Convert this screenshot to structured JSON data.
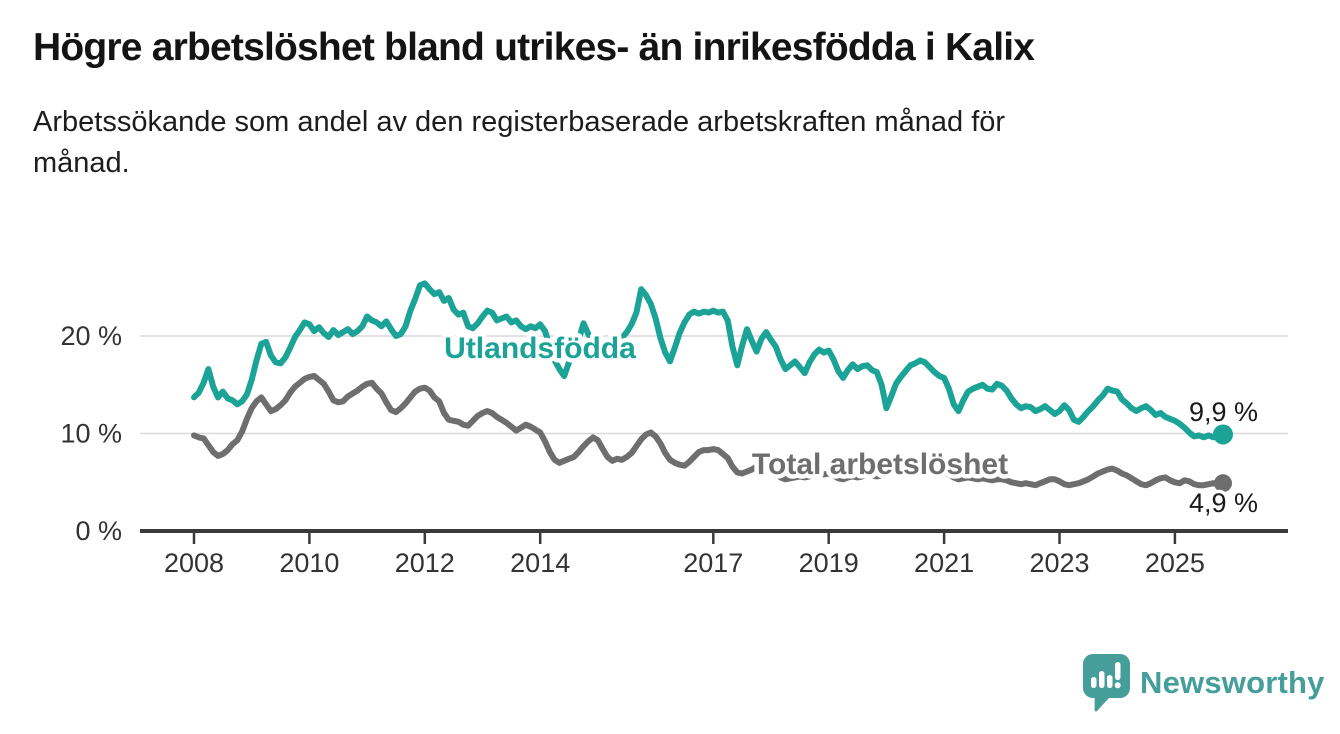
{
  "header": {
    "title": "Högre arbetslöshet bland utrikes- än inrikesfödda i Kalix",
    "subtitle": "Arbetssökande som andel av den registerbaserade arbetskraften månad för\nmånad."
  },
  "chart_data": {
    "type": "line",
    "unit": "%",
    "grid": "horizontal",
    "legend_position": "inline-labels",
    "x_axis": {
      "ticks": [
        2008,
        2010,
        2012,
        2014,
        2017,
        2019,
        2021,
        2023,
        2025
      ],
      "range": [
        2007.1,
        2026.6
      ]
    },
    "y_axis": {
      "ticks": [
        0,
        10,
        20
      ],
      "tick_suffix": " %",
      "range": [
        0,
        27
      ]
    },
    "series": [
      {
        "label": "Utlandsfödda",
        "color": "#1aa396",
        "end_label": "9,9 %",
        "end_value": 9.9,
        "start_year": 2008,
        "interval_months": 1,
        "values": [
          13.7,
          14.2,
          15.2,
          16.6,
          14.8,
          13.7,
          14.3,
          13.6,
          13.4,
          13.0,
          13.3,
          14.0,
          15.5,
          17.5,
          19.2,
          19.4,
          18.0,
          17.3,
          17.2,
          17.8,
          18.8,
          19.9,
          20.6,
          21.4,
          21.2,
          20.5,
          20.9,
          20.3,
          19.9,
          20.6,
          20.1,
          20.4,
          20.7,
          20.2,
          20.5,
          21.0,
          22.0,
          21.6,
          21.4,
          21.0,
          21.5,
          20.7,
          20.0,
          20.2,
          21.0,
          22.6,
          23.8,
          25.2,
          25.4,
          24.8,
          24.3,
          24.5,
          23.6,
          23.9,
          22.7,
          22.2,
          22.4,
          21.0,
          20.8,
          21.3,
          22.0,
          22.6,
          22.4,
          21.6,
          21.8,
          22.0,
          21.4,
          21.6,
          21.0,
          20.7,
          21.0,
          20.8,
          21.2,
          20.5,
          19.0,
          17.5,
          16.6,
          15.9,
          17.3,
          18.3,
          19.6,
          21.3,
          20.2,
          19.3,
          18.9,
          18.2,
          17.6,
          18.3,
          19.1,
          19.8,
          20.4,
          21.2,
          22.4,
          24.8,
          24.2,
          23.3,
          21.8,
          19.8,
          18.3,
          17.4,
          18.8,
          20.3,
          21.4,
          22.2,
          22.5,
          22.3,
          22.5,
          22.4,
          22.6,
          22.4,
          22.5,
          21.6,
          18.9,
          17.0,
          19.0,
          20.7,
          19.5,
          18.4,
          19.7,
          20.4,
          19.6,
          18.9,
          17.6,
          16.6,
          17.0,
          17.4,
          16.8,
          16.2,
          17.3,
          18.1,
          18.6,
          18.3,
          18.5,
          17.6,
          16.4,
          15.7,
          16.5,
          17.1,
          16.6,
          16.9,
          17.0,
          16.5,
          16.3,
          15.0,
          12.6,
          13.8,
          15.1,
          15.8,
          16.4,
          17.0,
          17.2,
          17.5,
          17.3,
          16.8,
          16.3,
          15.9,
          15.7,
          14.6,
          13.0,
          12.3,
          13.4,
          14.3,
          14.6,
          14.8,
          15.0,
          14.6,
          14.5,
          15.1,
          14.9,
          14.4,
          13.6,
          13.0,
          12.6,
          12.8,
          12.7,
          12.3,
          12.5,
          12.8,
          12.4,
          12.0,
          12.3,
          12.9,
          12.4,
          11.4,
          11.2,
          11.7,
          12.3,
          12.8,
          13.4,
          13.9,
          14.6,
          14.4,
          14.3,
          13.5,
          13.1,
          12.6,
          12.3,
          12.6,
          12.8,
          12.4,
          11.9,
          12.1,
          11.7,
          11.5,
          11.3,
          11.0,
          10.6,
          10.1,
          9.7,
          9.8,
          9.6,
          9.8,
          9.6,
          9.8,
          9.9
        ]
      },
      {
        "label": "Total arbetslöshet",
        "color": "#6e6e6e",
        "end_label": "4,9 %",
        "end_value": 4.9,
        "start_year": 2008,
        "interval_months": 1,
        "values": [
          9.8,
          9.6,
          9.5,
          8.8,
          8.1,
          7.7,
          7.9,
          8.3,
          8.9,
          9.3,
          10.2,
          11.5,
          12.6,
          13.3,
          13.7,
          13.0,
          12.3,
          12.5,
          12.9,
          13.4,
          14.2,
          14.8,
          15.2,
          15.6,
          15.8,
          15.9,
          15.5,
          15.1,
          14.3,
          13.4,
          13.2,
          13.3,
          13.8,
          14.1,
          14.4,
          14.8,
          15.1,
          15.2,
          14.6,
          14.1,
          13.2,
          12.4,
          12.2,
          12.6,
          13.1,
          13.7,
          14.3,
          14.6,
          14.7,
          14.4,
          13.7,
          13.3,
          12.1,
          11.4,
          11.3,
          11.2,
          10.9,
          10.8,
          11.3,
          11.8,
          12.1,
          12.3,
          12.1,
          11.7,
          11.4,
          11.1,
          10.7,
          10.3,
          10.6,
          10.9,
          10.7,
          10.4,
          10.1,
          9.2,
          8.1,
          7.3,
          7.0,
          7.2,
          7.4,
          7.6,
          8.1,
          8.7,
          9.2,
          9.6,
          9.3,
          8.4,
          7.6,
          7.2,
          7.4,
          7.3,
          7.6,
          8.0,
          8.7,
          9.4,
          9.9,
          10.1,
          9.7,
          9.0,
          8.0,
          7.3,
          7.0,
          6.8,
          6.7,
          7.1,
          7.6,
          8.1,
          8.3,
          8.3,
          8.4,
          8.3,
          7.9,
          7.5,
          6.6,
          6.0,
          5.9,
          6.1,
          6.3,
          6.6,
          6.6,
          6.3,
          6.2,
          5.9,
          5.5,
          5.3,
          5.4,
          5.5,
          5.6,
          5.5,
          5.6,
          5.8,
          5.9,
          5.8,
          5.9,
          5.7,
          5.4,
          5.3,
          5.5,
          5.6,
          5.5,
          5.6,
          5.8,
          5.7,
          5.6,
          5.7,
          6.0,
          6.2,
          6.6,
          6.8,
          6.7,
          6.6,
          6.5,
          6.4,
          6.2,
          6.1,
          6.0,
          5.9,
          6.0,
          5.8,
          5.5,
          5.3,
          5.4,
          5.5,
          5.4,
          5.3,
          5.4,
          5.3,
          5.2,
          5.3,
          5.3,
          5.2,
          5.0,
          4.9,
          4.8,
          4.9,
          4.8,
          4.7,
          4.9,
          5.1,
          5.3,
          5.3,
          5.1,
          4.8,
          4.7,
          4.8,
          4.9,
          5.1,
          5.3,
          5.6,
          5.9,
          6.1,
          6.3,
          6.4,
          6.2,
          5.9,
          5.7,
          5.4,
          5.1,
          4.8,
          4.7,
          4.9,
          5.2,
          5.4,
          5.5,
          5.2,
          5.0,
          4.9,
          5.2,
          5.1,
          4.8,
          4.7,
          4.7,
          4.8,
          4.9,
          4.8,
          4.9
        ]
      }
    ],
    "colors": {
      "grid": "#d9d9d9",
      "axis": "#3a3a3a",
      "tick_text": "#333333"
    }
  },
  "branding": {
    "name": "Newsworthy",
    "color": "#459e9a"
  }
}
